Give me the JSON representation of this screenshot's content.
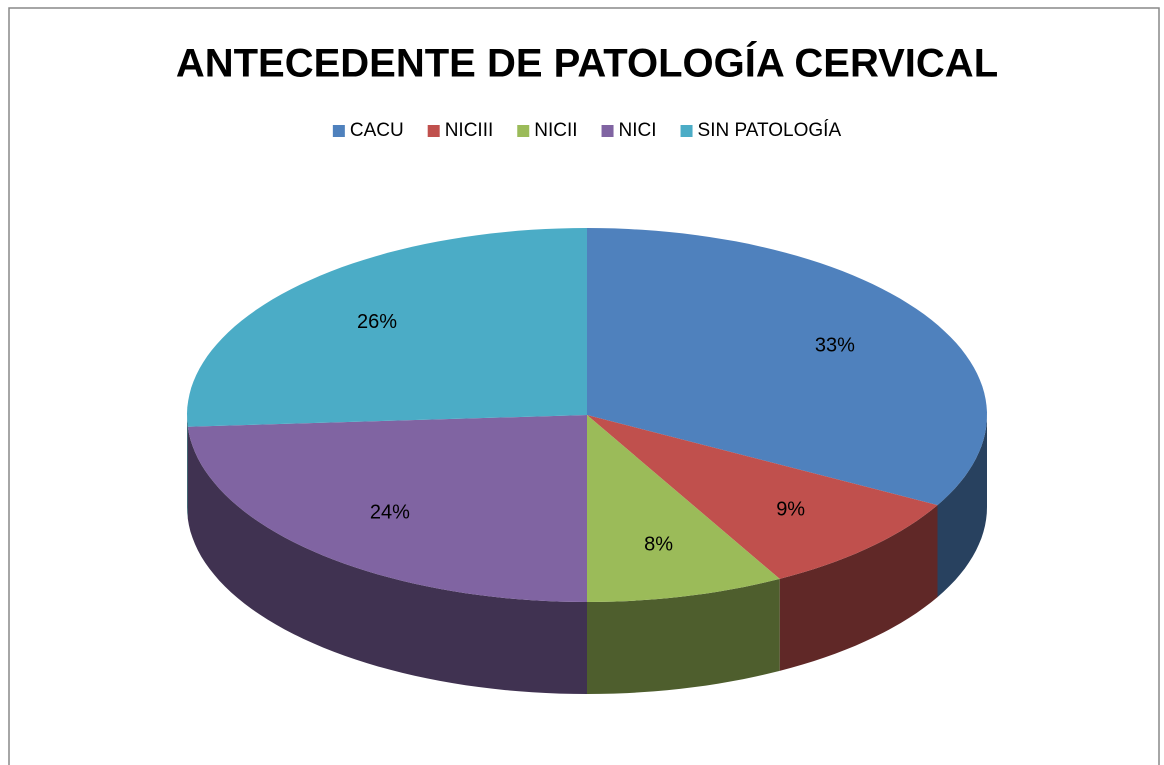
{
  "chart_data": {
    "type": "pie3d",
    "title": "ANTECEDENTE DE PATOLOGÍA CERVICAL",
    "categories": [
      "CACU",
      "NICIII",
      "NICII",
      "NICI",
      "SIN PATOLOGÍA"
    ],
    "values": [
      33,
      9,
      8,
      24,
      26
    ],
    "value_labels": [
      "33%",
      "9%",
      "8%",
      "24%",
      "26%"
    ],
    "colors": [
      "#4f81bd",
      "#c0504d",
      "#9bbb59",
      "#8064a2",
      "#4bacc6"
    ],
    "legend": "top"
  }
}
